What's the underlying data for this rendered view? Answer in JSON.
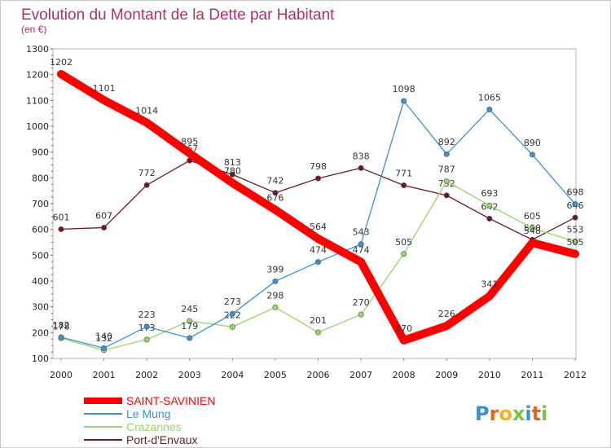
{
  "chart_data": {
    "type": "line",
    "title": "Evolution du Montant de la Dette par Habitant",
    "subtitle": "(en €)",
    "x": [
      "2000",
      "2001",
      "2002",
      "2003",
      "2004",
      "2005",
      "2006",
      "2007",
      "2008",
      "2009",
      "2010",
      "2011",
      "2012"
    ],
    "ylim": [
      100,
      1300
    ],
    "yticks": [
      100,
      200,
      300,
      400,
      500,
      600,
      700,
      800,
      900,
      1000,
      1100,
      1200,
      1300
    ],
    "grid": false,
    "legend_position": "bottom-left",
    "series": [
      {
        "name": "Port-d'Envaux",
        "color": "#6b1a24",
        "values": [
          601,
          607,
          772,
          867,
          813,
          742,
          798,
          838,
          771,
          732,
          642,
          560,
          646
        ]
      },
      {
        "name": "Crazannes",
        "color": "#99d56b",
        "values": [
          178,
          132,
          173,
          245,
          222,
          298,
          201,
          270,
          505,
          787,
          693,
          605,
          553
        ]
      },
      {
        "name": "Le Mung",
        "color": "#3f8fd0",
        "values": [
          182,
          140,
          223,
          179,
          273,
          399,
          474,
          543,
          1098,
          892,
          1065,
          890,
          698
        ]
      },
      {
        "name": "SAINT-SAVINIEN",
        "color": "#ff0000",
        "values": [
          1202,
          1101,
          1014,
          895,
          780,
          676,
          564,
          474,
          170,
          226,
          341,
          548,
          505
        ]
      }
    ],
    "logo_text": "Proxiti"
  }
}
